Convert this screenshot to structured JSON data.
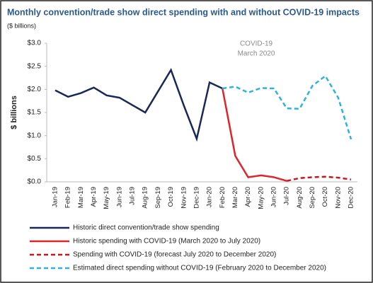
{
  "chart_data": {
    "type": "line",
    "title": "Monthly convention/trade show direct spending with and without COVID-19 impacts",
    "subtitle": "($ billions)",
    "y_label": "$ billions",
    "annotation": [
      "COVID-19",
      "March 2020"
    ],
    "categories": [
      "Jan-19",
      "Feb-19",
      "Mar-19",
      "Apr-19",
      "May-19",
      "Jun-19",
      "Jul-19",
      "Aug-19",
      "Sep-19",
      "Oct-19",
      "Nov-19",
      "Dec-19",
      "Jan-20",
      "Feb-20",
      "Mar-20",
      "Apr-20",
      "May-20",
      "Jun-20",
      "Jul-20",
      "Aug-20",
      "Sep-20",
      "Oct-20",
      "Nov-20",
      "Dec-20"
    ],
    "series": [
      {
        "name": "Historic direct convention/trade show spending",
        "color": "#1b2757",
        "style": "solid",
        "values": [
          1.98,
          1.84,
          1.92,
          2.04,
          1.87,
          1.82,
          1.66,
          1.5,
          1.96,
          2.42,
          1.65,
          0.93,
          2.15,
          2.02,
          null,
          null,
          null,
          null,
          null,
          null,
          null,
          null,
          null,
          null
        ]
      },
      {
        "name": "Historic spending with COVID-19 (March 2020 to July 2020)",
        "color": "#e0242b",
        "style": "solid",
        "values": [
          null,
          null,
          null,
          null,
          null,
          null,
          null,
          null,
          null,
          null,
          null,
          null,
          null,
          2.02,
          0.56,
          0.1,
          0.14,
          0.1,
          0.02,
          null,
          null,
          null,
          null,
          null
        ]
      },
      {
        "name": "Spending with COVID-19 (forecast July 2020 to December 2020)",
        "color": "#c8161d",
        "style": "dashed",
        "values": [
          null,
          null,
          null,
          null,
          null,
          null,
          null,
          null,
          null,
          null,
          null,
          null,
          null,
          null,
          null,
          null,
          null,
          null,
          0.02,
          0.08,
          0.1,
          0.11,
          0.09,
          0.05
        ]
      },
      {
        "name": "Estimated direct spending without COVID-19 (February 2020 to December 2020)",
        "color": "#2bb3df",
        "style": "dashed",
        "values": [
          null,
          null,
          null,
          null,
          null,
          null,
          null,
          null,
          null,
          null,
          null,
          null,
          null,
          2.02,
          2.06,
          1.93,
          2.03,
          2.02,
          1.59,
          1.58,
          2.08,
          2.29,
          1.82,
          0.92
        ]
      }
    ],
    "ylim": [
      0,
      3
    ],
    "yticks": [
      {
        "value": 0,
        "label": "$0.0"
      },
      {
        "value": 0.5,
        "label": "$0.5"
      },
      {
        "value": 1,
        "label": "$1.0"
      },
      {
        "value": 1.5,
        "label": "$1.5"
      },
      {
        "value": 2,
        "label": "$2.0"
      },
      {
        "value": 2.5,
        "label": "$2.5"
      },
      {
        "value": 3,
        "label": "$3.0"
      }
    ],
    "grid": false
  }
}
